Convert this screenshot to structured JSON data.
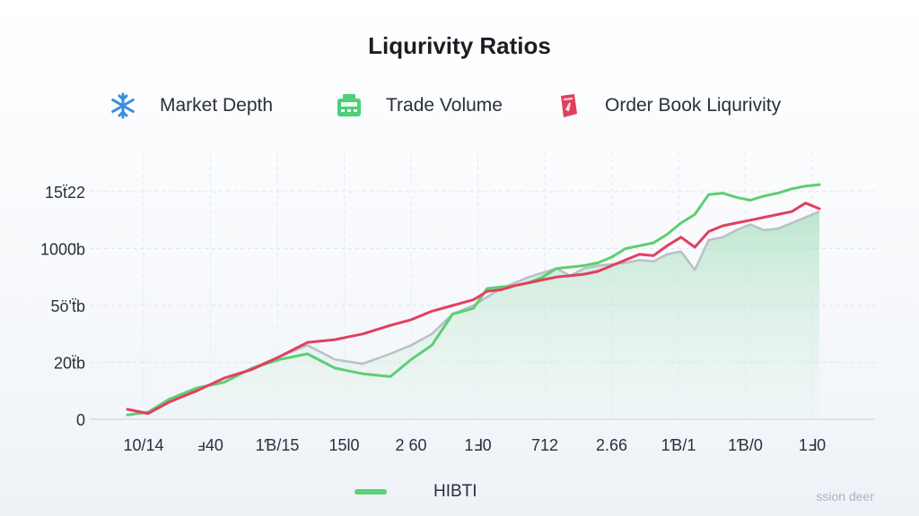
{
  "title": "Liqurivity Ratios",
  "legend": [
    {
      "label": "Market Depth",
      "icon": "snowflake-icon",
      "color": "#3b8de0"
    },
    {
      "label": "Trade Volume",
      "icon": "cash-register-icon",
      "color": "#4fcf7a"
    },
    {
      "label": "Order Book Liqurivity",
      "icon": "card-icon",
      "color": "#e0405f"
    }
  ],
  "bottom_legend": {
    "label": "HIBTI",
    "color": "#5bd078"
  },
  "watermark": "ssion deer",
  "colors": {
    "green": "#5ccf72",
    "red": "#e0405f",
    "gray": "#b9bfc8",
    "area": "#bfe8d0"
  },
  "chart_data": {
    "type": "line",
    "title": "Liqurivity Ratios",
    "y_tick_labels": [
      "0",
      "20ẗb",
      "5ö'ẗb",
      "1000̈b",
      "15ẗ22"
    ],
    "y_tick_values": [
      0,
      2000,
      4000,
      6000,
      8000
    ],
    "x_tick_labels": [
      "10/14",
      "ⅎ40",
      "1Ɓ/15",
      "15Ɩ0",
      "2 60",
      "1Ⅎ0",
      "712",
      "2.66",
      "1Ɓ/1",
      "1Ɓ/0",
      "1Ⅎ0"
    ],
    "x_range": [
      0,
      100
    ],
    "ylim": [
      0,
      8000
    ],
    "grid": true,
    "series": [
      {
        "role": "area",
        "color": "#bfe8d0",
        "x": [
          0,
          3,
          6,
          10,
          14,
          18,
          22,
          26,
          30,
          34,
          38,
          41,
          44,
          47,
          50,
          52,
          54,
          56,
          58,
          60,
          62,
          64,
          66,
          68,
          70,
          72,
          74,
          76,
          78,
          80,
          82,
          84,
          86,
          88,
          90,
          92,
          94,
          96,
          98,
          100
        ],
        "y": [
          150,
          250,
          700,
          1100,
          1300,
          1800,
          2200,
          2600,
          2100,
          1950,
          2300,
          2600,
          3000,
          3700,
          4000,
          4300,
          4600,
          4800,
          5000,
          5150,
          5300,
          5050,
          5300,
          5400,
          5450,
          5500,
          5600,
          5550,
          5800,
          5900,
          5250,
          6300,
          6400,
          6650,
          6850,
          6650,
          6700,
          6900,
          7100,
          7300
        ]
      },
      {
        "name": "HIBTI",
        "color": "#5ccf72",
        "x": [
          0,
          3,
          6,
          10,
          14,
          18,
          22,
          26,
          30,
          34,
          38,
          41,
          44,
          47,
          50,
          52,
          54,
          56,
          58,
          60,
          62,
          64,
          66,
          68,
          70,
          72,
          74,
          76,
          78,
          80,
          82,
          84,
          86,
          88,
          90,
          92,
          94,
          96,
          98,
          100
        ],
        "y": [
          150,
          250,
          700,
          1100,
          1300,
          1800,
          2100,
          2300,
          1800,
          1600,
          1500,
          2100,
          2600,
          3700,
          3900,
          4600,
          4650,
          4700,
          4800,
          5000,
          5300,
          5350,
          5400,
          5500,
          5700,
          6000,
          6100,
          6200,
          6500,
          6900,
          7200,
          7900,
          7950,
          7800,
          7700,
          7850,
          7950,
          8100,
          8200,
          8250
        ]
      },
      {
        "color": "#e0405f",
        "x": [
          0,
          3,
          6,
          10,
          14,
          18,
          22,
          26,
          30,
          34,
          38,
          41,
          44,
          47,
          50,
          52,
          54,
          56,
          58,
          60,
          62,
          64,
          66,
          68,
          70,
          72,
          74,
          76,
          78,
          80,
          82,
          84,
          86,
          88,
          90,
          92,
          94,
          96,
          98,
          100
        ],
        "y": [
          350,
          200,
          600,
          1000,
          1450,
          1750,
          2200,
          2700,
          2800,
          3000,
          3300,
          3500,
          3800,
          4000,
          4200,
          4500,
          4550,
          4700,
          4800,
          4900,
          5000,
          5050,
          5100,
          5200,
          5400,
          5600,
          5800,
          5750,
          6100,
          6400,
          6050,
          6600,
          6800,
          6900,
          7000,
          7100,
          7200,
          7300,
          7600,
          7400
        ]
      }
    ]
  }
}
